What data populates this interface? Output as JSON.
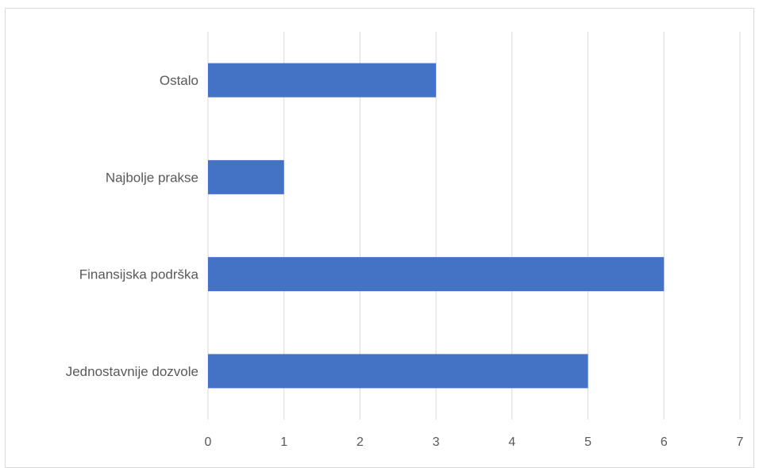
{
  "chart_data": {
    "type": "bar",
    "orientation": "horizontal",
    "categories": [
      "Jednostavnije dozvole",
      "Finansijska podrška",
      "Najbolje prakse",
      "Ostalo"
    ],
    "values": [
      5,
      6,
      1,
      3
    ],
    "title": "",
    "xlabel": "",
    "ylabel": "",
    "xlim": [
      0,
      7
    ],
    "x_ticks": [
      "0",
      "1",
      "2",
      "3",
      "4",
      "5",
      "6",
      "7"
    ],
    "grid": "vertical",
    "legend": "none",
    "bar_color": "#4472c4",
    "gridline_color": "#d9d9d9"
  }
}
